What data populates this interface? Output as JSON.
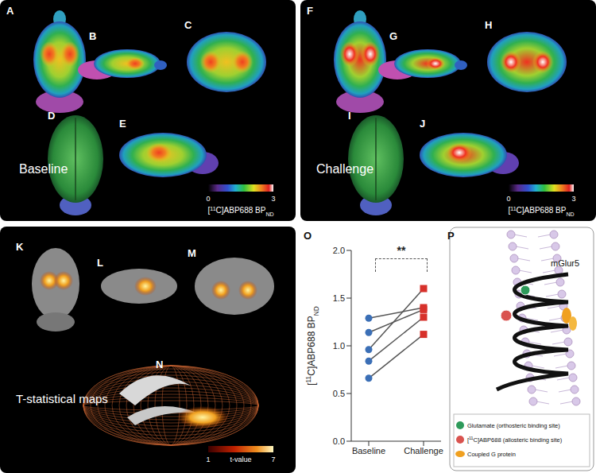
{
  "panels": {
    "labels": [
      "A",
      "B",
      "C",
      "D",
      "E",
      "F",
      "G",
      "H",
      "I",
      "J",
      "K",
      "L",
      "M",
      "N",
      "O",
      "P"
    ],
    "baseline": "Baseline",
    "challenge": "Challenge",
    "colorbar": {
      "min": 0,
      "max": 3,
      "label": "[11C]ABP688 BPND"
    },
    "tmap": {
      "title": "T-statistical maps",
      "colorbar": {
        "min": 1,
        "max": 7,
        "label": "t-value"
      }
    },
    "diagram": {
      "receptor": "mGlur5",
      "legend": [
        {
          "text": "Glutamate (orthosteric binding site)",
          "color": "#2e9a5a"
        },
        {
          "text": "[11C]ABP688 (allosteric binding site)",
          "color": "#d9534f"
        },
        {
          "text": "Coupled G protein",
          "color": "#f0a020"
        }
      ]
    }
  },
  "chart_data": {
    "type": "line",
    "categories": [
      "Baseline",
      "Challenge"
    ],
    "y_label": "[11C]ABP688 BPND",
    "ylim": [
      0,
      2
    ],
    "yticks": [
      {
        "value": 0,
        "label": "0.0"
      },
      {
        "value": 0.5,
        "label": "0.5"
      },
      {
        "value": 1,
        "label": "1.0"
      },
      {
        "value": 1.5,
        "label": "1.5"
      },
      {
        "value": 2,
        "label": "2.0"
      }
    ],
    "series": [
      {
        "values": [
          1.29,
          1.4
        ],
        "color": "#555555"
      },
      {
        "values": [
          1.14,
          1.38
        ],
        "color": "#555555"
      },
      {
        "values": [
          0.96,
          1.6
        ],
        "color": "#555555"
      },
      {
        "values": [
          0.84,
          1.3
        ],
        "color": "#555555"
      },
      {
        "values": [
          0.66,
          1.12
        ],
        "color": "#555555"
      }
    ],
    "colors": [
      "#3b6fb6",
      "#d7312b"
    ],
    "annotations": [
      "**"
    ]
  }
}
